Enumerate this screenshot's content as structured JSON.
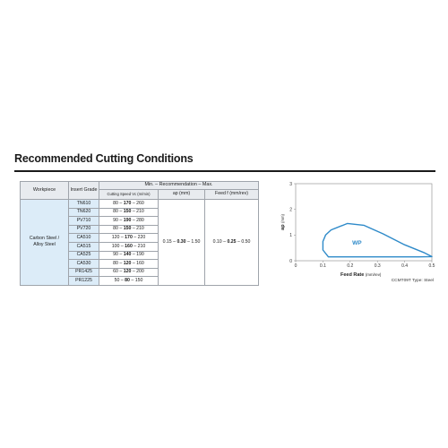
{
  "section": {
    "title": "Recommended Cutting Conditions"
  },
  "table": {
    "head_workpiece": "Workpiece",
    "head_grade": "Insert Grade",
    "head_group": "Min. – Recommendation – Max.",
    "head_speed": "Cutting Speed Vc (m/min)",
    "head_ap": "ap (mm)",
    "head_feed": "Feed f (mm/rev)",
    "workpiece_line1": "Carbon Steel /",
    "workpiece_line2": "Alloy Steel",
    "ap": {
      "min": "0.15",
      "rec": "0.30",
      "max": "1.50"
    },
    "feed": {
      "min": "0.10",
      "rec": "0.25",
      "max": "0.50"
    },
    "rows": [
      {
        "grade": "TN610",
        "min": "80",
        "rec": "170",
        "max": "260"
      },
      {
        "grade": "TN620",
        "min": "80",
        "rec": "150",
        "max": "210"
      },
      {
        "grade": "PV710",
        "min": "90",
        "rec": "190",
        "max": "280"
      },
      {
        "grade": "PV720",
        "min": "80",
        "rec": "150",
        "max": "210"
      },
      {
        "grade": "CA510",
        "min": "120",
        "rec": "170",
        "max": "220"
      },
      {
        "grade": "CA515",
        "min": "100",
        "rec": "160",
        "max": "210"
      },
      {
        "grade": "CA525",
        "min": "90",
        "rec": "140",
        "max": "190"
      },
      {
        "grade": "CA530",
        "min": "80",
        "rec": "120",
        "max": "160"
      },
      {
        "grade": "PR1425",
        "min": "60",
        "rec": "120",
        "max": "200"
      },
      {
        "grade": "PR1225",
        "min": "50",
        "rec": "80",
        "max": "150"
      }
    ]
  },
  "chart_data": {
    "type": "area",
    "title": "",
    "xlabel": "Feed Rate",
    "xlabel_unit": "(mm/rev)",
    "ylabel": "ap",
    "ylabel_unit": "(mm)",
    "xlim": [
      0,
      0.5
    ],
    "ylim": [
      0,
      3
    ],
    "x_ticks": [
      "0",
      "0.1",
      "0.2",
      "0.3",
      "0.4",
      "0.5"
    ],
    "y_ticks": [
      "0",
      "1",
      "2",
      "3"
    ],
    "region_label": "WP",
    "region_outline": [
      [
        0.13,
        1.2
      ],
      [
        0.19,
        1.45
      ],
      [
        0.25,
        1.38
      ],
      [
        0.32,
        1.05
      ],
      [
        0.4,
        0.62
      ],
      [
        0.47,
        0.32
      ],
      [
        0.5,
        0.16
      ],
      [
        0.45,
        0.15
      ],
      [
        0.3,
        0.15
      ],
      [
        0.2,
        0.15
      ],
      [
        0.12,
        0.15
      ],
      [
        0.1,
        0.42
      ],
      [
        0.1,
        0.75
      ],
      [
        0.11,
        1.0
      ]
    ],
    "caption": "CCMT09T Type: Steel",
    "grid": false,
    "colors": {
      "outline": "#2e8ac9",
      "fill": "#ffffff",
      "label": "#2e8ac9",
      "axis": "#888888"
    }
  }
}
